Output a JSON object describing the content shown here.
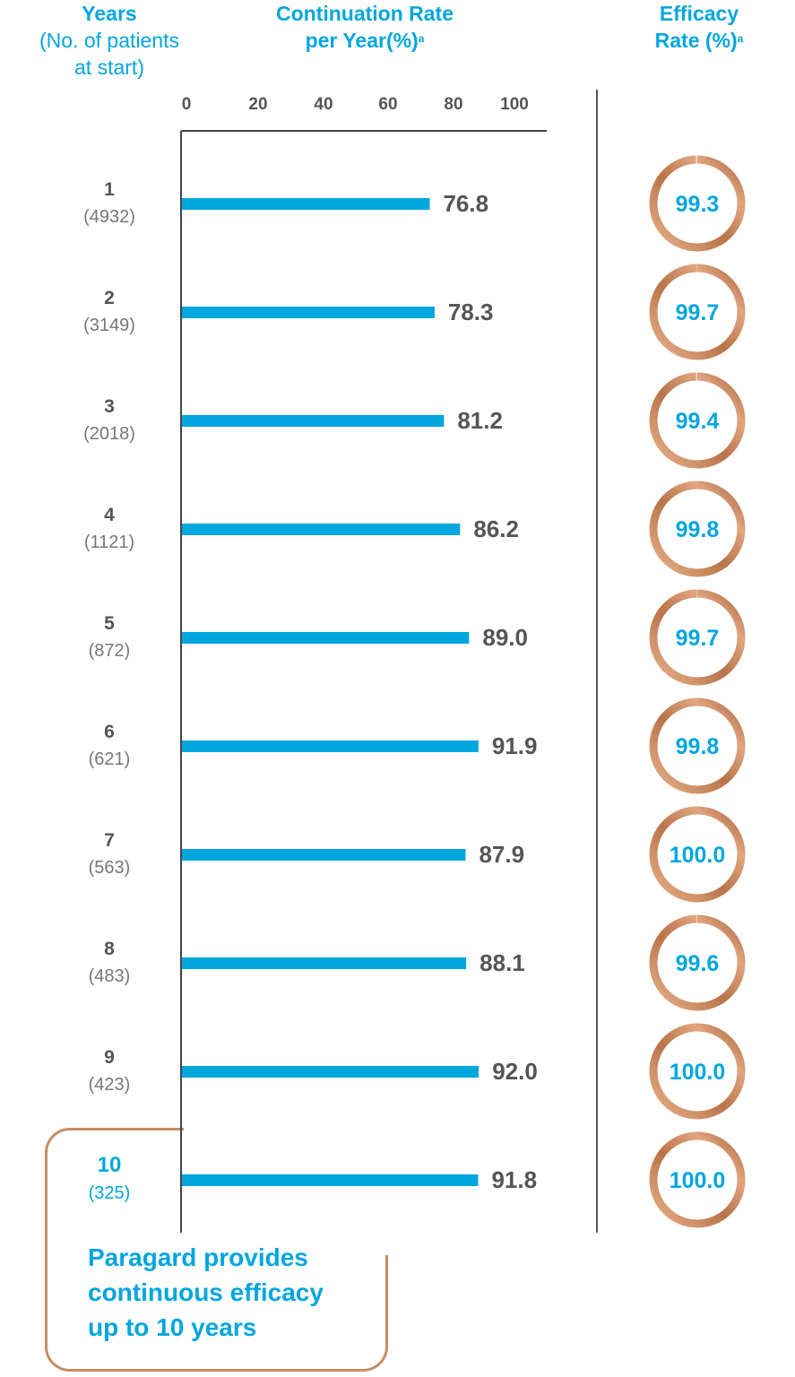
{
  "headers": {
    "years_title": "Years",
    "years_sub_1": "(No. of patients",
    "years_sub_2": "at start)",
    "rate_line_1": "Continuation Rate",
    "rate_line_2": "per Year(%)",
    "rate_sup": "a",
    "efficacy_line_1": "Efficacy",
    "efficacy_line_2": "Rate (%)",
    "efficacy_sup": "a"
  },
  "callout": {
    "text_line_1": "Paragard provides",
    "text_line_2": "continuous efficacy",
    "text_line_3": "up to 10 years"
  },
  "colors": {
    "accent_blue": "#00a6de",
    "copper": "#c98b63",
    "dark_text": "#555555",
    "grey_text": "#777777",
    "axis": "#444444"
  },
  "chart_data": {
    "type": "bar",
    "orientation": "horizontal",
    "categories": [
      "1",
      "2",
      "3",
      "4",
      "5",
      "6",
      "7",
      "8",
      "9",
      "10"
    ],
    "patients": [
      "(4932)",
      "(3149)",
      "(2018)",
      "(1121)",
      "(872)",
      "(621)",
      "(563)",
      "(483)",
      "(423)",
      "(325)"
    ],
    "series": [
      {
        "name": "Continuation Rate per Year(%)",
        "values": [
          76.8,
          78.3,
          81.2,
          86.2,
          89.0,
          91.9,
          87.9,
          88.1,
          92.0,
          91.8
        ]
      },
      {
        "name": "Efficacy Rate (%)",
        "values": [
          99.3,
          99.7,
          99.4,
          99.8,
          99.7,
          99.8,
          100.0,
          99.6,
          100.0,
          100.0
        ]
      }
    ],
    "continuation_labels": [
      "76.8",
      "78.3",
      "81.2",
      "86.2",
      "89.0",
      "91.9",
      "87.9",
      "88.1",
      "92.0",
      "91.8"
    ],
    "efficacy_labels": [
      "99.3",
      "99.7",
      "99.4",
      "99.8",
      "99.7",
      "99.8",
      "100.0",
      "99.6",
      "100.0",
      "100.0"
    ],
    "x_ticks": [
      "0",
      "20",
      "40",
      "60",
      "80",
      "100"
    ],
    "xlim": [
      0,
      100
    ],
    "highlight_category": "10"
  }
}
